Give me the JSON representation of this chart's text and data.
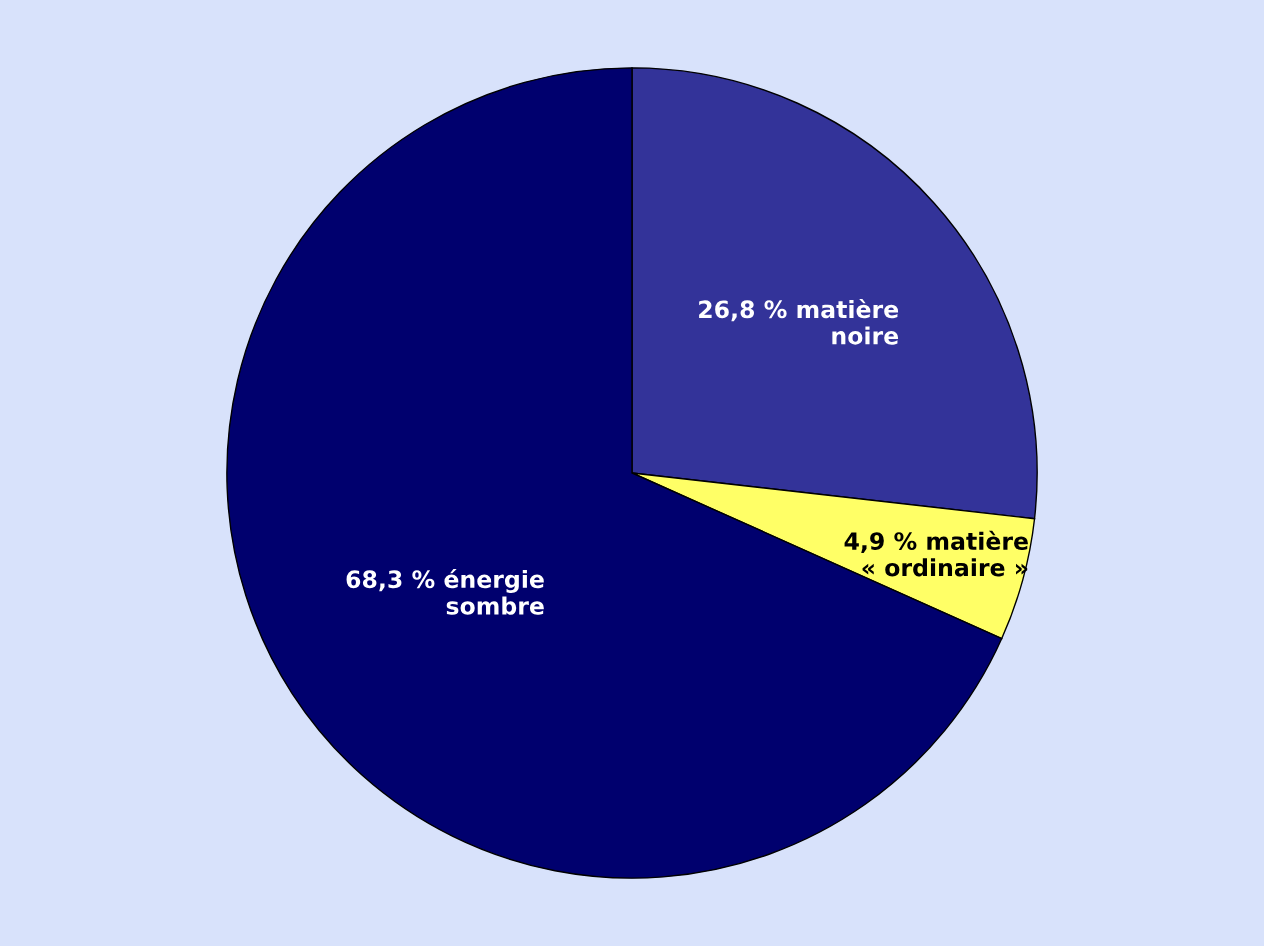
{
  "chart_data": {
    "type": "pie",
    "categories": [
      "26,8 % matière noire",
      "4,9 % matière « ordinaire »",
      "68,3 % énergie sombre"
    ],
    "values": [
      26.8,
      4.9,
      68.3
    ],
    "colors": [
      "#333399",
      "#ffff66",
      "#00006e"
    ],
    "legend": false
  }
}
